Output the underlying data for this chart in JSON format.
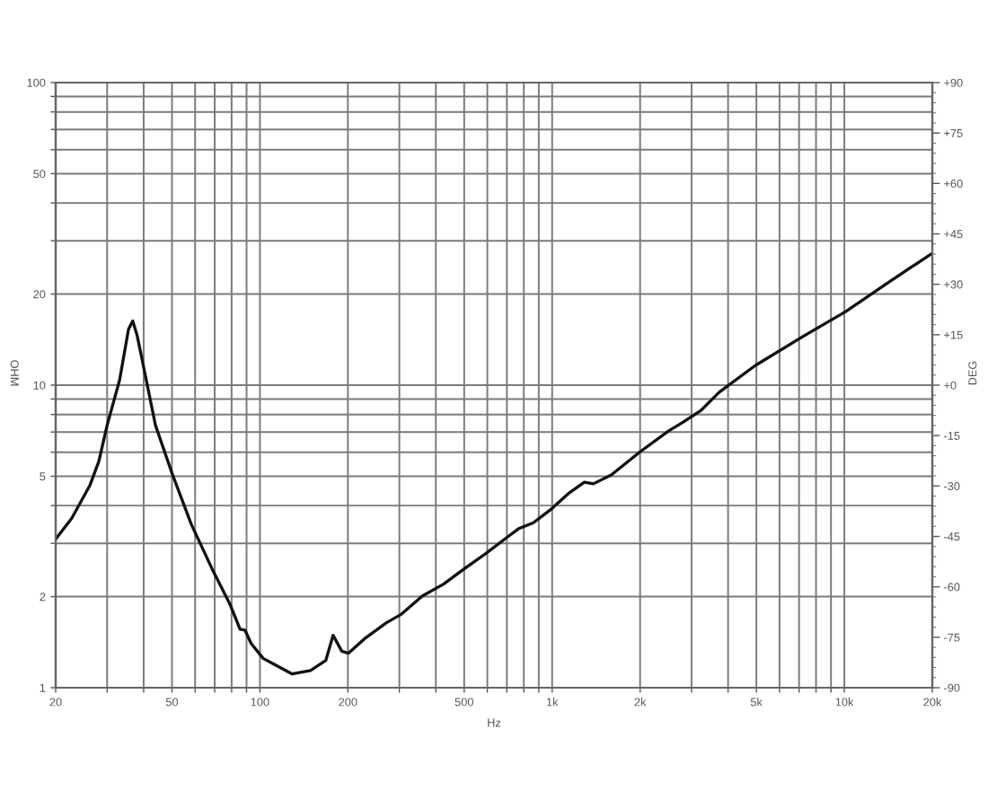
{
  "chart_data": {
    "type": "line",
    "xlabel": "Hz",
    "ylabel": "OHM",
    "y2label": "DEG",
    "log": "xy",
    "grid": true,
    "xlim": [
      20,
      20000
    ],
    "ylim": [
      1,
      100
    ],
    "y2lim": [
      -90,
      90
    ],
    "xticks": [
      20,
      {
        "value": 30,
        "label": null
      },
      {
        "value": 40,
        "label": null
      },
      50,
      {
        "value": 60,
        "label": null
      },
      {
        "value": 70,
        "label": null
      },
      {
        "value": 80,
        "label": null
      },
      {
        "value": 90,
        "label": null
      },
      100,
      200,
      {
        "value": 300,
        "label": null
      },
      {
        "value": 400,
        "label": null
      },
      500,
      {
        "value": 600,
        "label": null
      },
      {
        "value": 700,
        "label": null
      },
      {
        "value": 800,
        "label": null
      },
      {
        "value": 900,
        "label": null
      },
      {
        "value": 1000,
        "label": "1k"
      },
      {
        "value": 2000,
        "label": "2k"
      },
      {
        "value": 3000,
        "label": null
      },
      {
        "value": 4000,
        "label": null
      },
      {
        "value": 5000,
        "label": "5k"
      },
      {
        "value": 6000,
        "label": null
      },
      {
        "value": 7000,
        "label": null
      },
      {
        "value": 8000,
        "label": null
      },
      {
        "value": 9000,
        "label": null
      },
      {
        "value": 10000,
        "label": "10k"
      },
      {
        "value": 20000,
        "label": "20k"
      }
    ],
    "yticks": [
      1,
      2,
      {
        "value": 3,
        "label": null
      },
      {
        "value": 4,
        "label": null
      },
      5,
      {
        "value": 6,
        "label": null
      },
      {
        "value": 7,
        "label": null
      },
      {
        "value": 8,
        "label": null
      },
      {
        "value": 9,
        "label": null
      },
      10,
      20,
      {
        "value": 30,
        "label": null
      },
      {
        "value": 40,
        "label": null
      },
      50,
      {
        "value": 60,
        "label": null
      },
      {
        "value": 70,
        "label": null
      },
      {
        "value": 80,
        "label": null
      },
      {
        "value": 90,
        "label": null
      },
      100
    ],
    "y2ticks": [
      {
        "value": 90,
        "label": "+90"
      },
      {
        "value": 87,
        "label": null
      },
      {
        "value": 84,
        "label": null
      },
      {
        "value": 81,
        "label": null
      },
      {
        "value": 78,
        "label": null
      },
      {
        "value": 75,
        "label": "+75"
      },
      {
        "value": 72,
        "label": null
      },
      {
        "value": 69,
        "label": null
      },
      {
        "value": 66,
        "label": null
      },
      {
        "value": 63,
        "label": null
      },
      {
        "value": 60,
        "label": "+60"
      },
      {
        "value": 57,
        "label": null
      },
      {
        "value": 54,
        "label": null
      },
      {
        "value": 51,
        "label": null
      },
      {
        "value": 48,
        "label": null
      },
      {
        "value": 45,
        "label": "+45"
      },
      {
        "value": 42,
        "label": null
      },
      {
        "value": 39,
        "label": null
      },
      {
        "value": 36,
        "label": null
      },
      {
        "value": 33,
        "label": null
      },
      {
        "value": 30,
        "label": "+30"
      },
      {
        "value": 27,
        "label": null
      },
      {
        "value": 24,
        "label": null
      },
      {
        "value": 21,
        "label": null
      },
      {
        "value": 18,
        "label": null
      },
      {
        "value": 15,
        "label": "+15"
      },
      {
        "value": 12,
        "label": null
      },
      {
        "value": 9,
        "label": null
      },
      {
        "value": 6,
        "label": null
      },
      {
        "value": 3,
        "label": null
      },
      {
        "value": 0,
        "label": "+0"
      },
      {
        "value": -3,
        "label": null
      },
      {
        "value": -6,
        "label": null
      },
      {
        "value": -9,
        "label": null
      },
      {
        "value": -12,
        "label": null
      },
      {
        "value": -15,
        "label": "-15"
      },
      {
        "value": -18,
        "label": null
      },
      {
        "value": -21,
        "label": null
      },
      {
        "value": -24,
        "label": null
      },
      {
        "value": -27,
        "label": null
      },
      {
        "value": -30,
        "label": "-30"
      },
      {
        "value": -33,
        "label": null
      },
      {
        "value": -36,
        "label": null
      },
      {
        "value": -39,
        "label": null
      },
      {
        "value": -42,
        "label": null
      },
      {
        "value": -45,
        "label": "-45"
      },
      {
        "value": -48,
        "label": null
      },
      {
        "value": -51,
        "label": null
      },
      {
        "value": -54,
        "label": null
      },
      {
        "value": -57,
        "label": null
      },
      {
        "value": -60,
        "label": "-60"
      },
      {
        "value": -63,
        "label": null
      },
      {
        "value": -66,
        "label": null
      },
      {
        "value": -69,
        "label": null
      },
      {
        "value": -72,
        "label": null
      },
      {
        "value": -75,
        "label": "-75"
      },
      {
        "value": -78,
        "label": null
      },
      {
        "value": -81,
        "label": null
      },
      {
        "value": -84,
        "label": null
      },
      {
        "value": -87,
        "label": null
      },
      {
        "value": -90,
        "label": "-90"
      }
    ],
    "series": [
      {
        "color": "#111111",
        "x": [
          20,
          22.7,
          26.2,
          28.1,
          30,
          33.1,
          35.5,
          36.7,
          38,
          39.9,
          43.9,
          50,
          58.2,
          68.6,
          79.1,
          85.5,
          88.9,
          93.3,
          102.6,
          112.7,
          129,
          149,
          168,
          178,
          190.6,
          201,
          229.8,
          271,
          305,
          360,
          425,
          500,
          591,
          698,
          766,
          863,
          995,
          1146,
          1289,
          1384,
          1594,
          1990,
          2500,
          2810,
          3240,
          3730,
          4950,
          7230,
          10100,
          14000,
          20000
        ],
        "values": [
          3.1,
          3.63,
          4.67,
          5.6,
          7.37,
          10.4,
          15.3,
          16.3,
          14.6,
          11.6,
          7.37,
          5.12,
          3.47,
          2.47,
          1.88,
          1.56,
          1.55,
          1.4,
          1.25,
          1.19,
          1.11,
          1.14,
          1.23,
          1.49,
          1.32,
          1.3,
          1.46,
          1.64,
          1.75,
          2.01,
          2.2,
          2.47,
          2.77,
          3.13,
          3.35,
          3.51,
          3.9,
          4.41,
          4.78,
          4.72,
          5.05,
          6.0,
          7.05,
          7.55,
          8.27,
          9.48,
          11.6,
          14.5,
          17.5,
          21.7,
          27.3
        ]
      }
    ]
  }
}
